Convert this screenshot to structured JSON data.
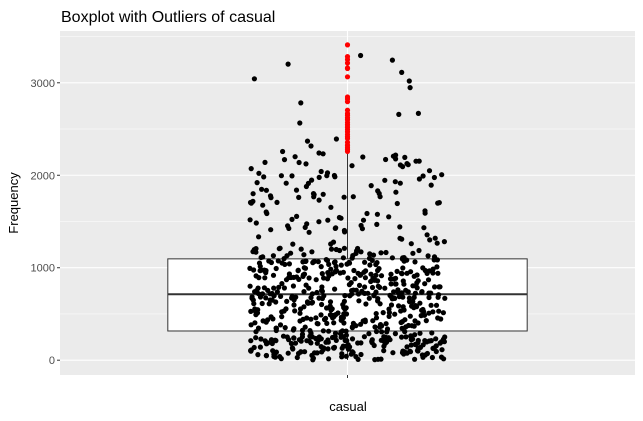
{
  "chart_data": {
    "type": "boxplot",
    "title": "Boxplot with Outliers of  casual",
    "xlabel": "",
    "ylabel": "Frequency",
    "categories": [
      "casual"
    ],
    "ylim": [
      -160,
      3560
    ],
    "y_ticks": [
      0,
      1000,
      2000,
      3000
    ],
    "grid": true,
    "box": {
      "category": "casual",
      "min": 2,
      "q1": 316,
      "median": 713,
      "q3": 1096,
      "whisker_high": 2258
    },
    "points": {
      "count": 731,
      "y_range": [
        2,
        3410
      ],
      "jitter": true
    },
    "outliers": [
      2258,
      2282,
      2301,
      2326,
      2355,
      2397,
      2416,
      2441,
      2469,
      2495,
      2521,
      2546,
      2571,
      2601,
      2622,
      2650,
      2668,
      2704,
      2795,
      2825,
      2846,
      3065,
      3155,
      3160,
      3214,
      3252,
      3283,
      3410
    ],
    "colors": {
      "panel": "#ebebeb",
      "grid": "#ffffff",
      "points": "#000000",
      "outliers": "#ff0000",
      "box_fill": "#ffffff",
      "box_line": "#333333"
    }
  }
}
